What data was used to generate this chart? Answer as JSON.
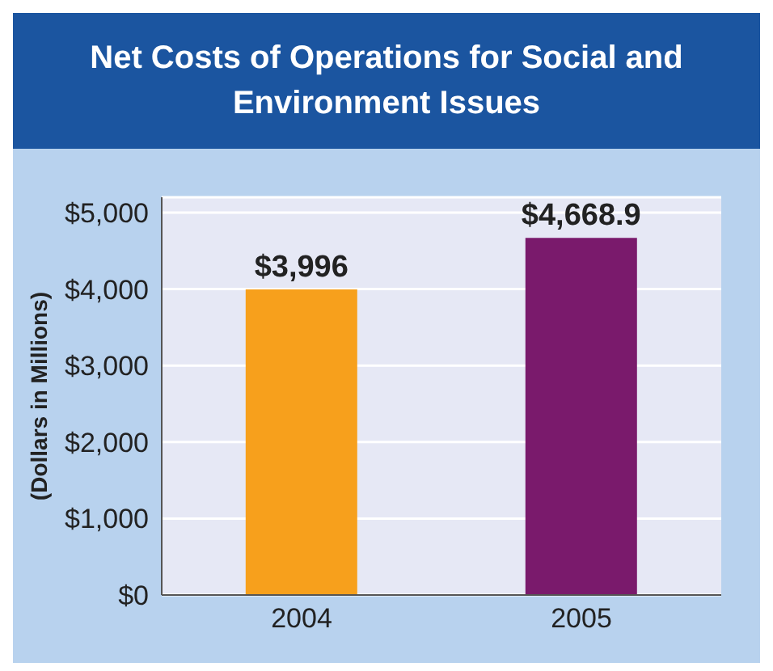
{
  "chart_data": {
    "type": "bar",
    "title": "Net Costs of Operations for Social and Environment Issues",
    "ylabel": "(Dollars in Millions)",
    "categories": [
      "2004",
      "2005"
    ],
    "values": [
      3996,
      4668.9
    ],
    "colors": [
      "#f7a01c",
      "#7a1a6c"
    ],
    "value_labels": [
      "$3,996",
      "$4,668.9"
    ],
    "ylim": [
      0,
      5200
    ],
    "yticks": [
      {
        "value": 0,
        "label": "$0"
      },
      {
        "value": 1000,
        "label": "$1,000"
      },
      {
        "value": 2000,
        "label": "$2,000"
      },
      {
        "value": 3000,
        "label": "$3,000"
      },
      {
        "value": 4000,
        "label": "$4,000"
      },
      {
        "value": 5000,
        "label": "$5,000"
      }
    ],
    "grid": "y"
  }
}
